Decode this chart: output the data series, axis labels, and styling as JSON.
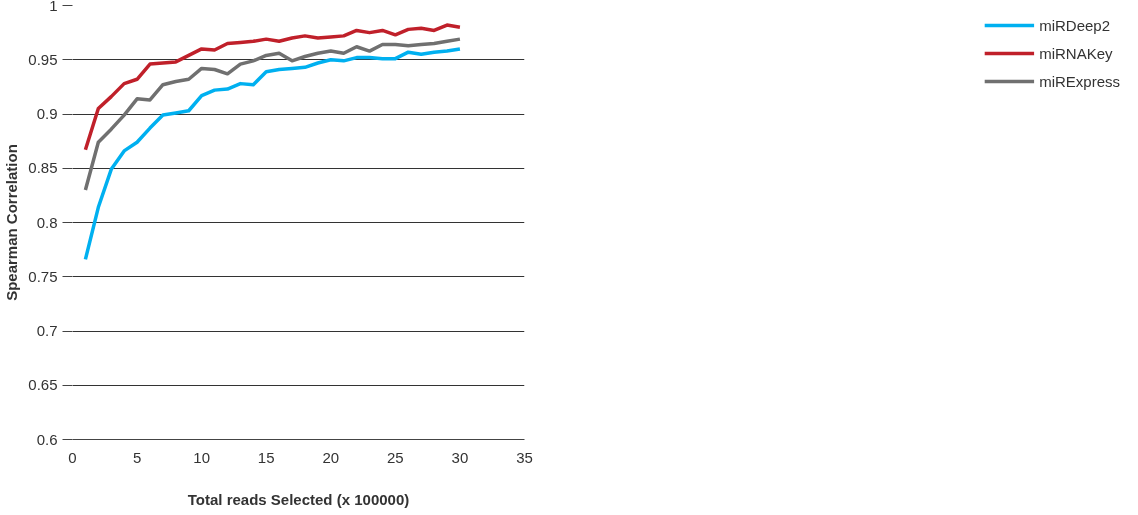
{
  "chart_data": {
    "type": "line",
    "xlabel": "Total reads Selected (x 100000)",
    "ylabel": "Spearman Correlation",
    "x": [
      1,
      2,
      3,
      4,
      5,
      6,
      7,
      8,
      9,
      10,
      11,
      12,
      13,
      14,
      15,
      16,
      17,
      18,
      19,
      20,
      21,
      22,
      23,
      24,
      25,
      26,
      27,
      28,
      29,
      30
    ],
    "series": [
      {
        "name": "miRDeep2",
        "color": "#00b0f0",
        "values": [
          0.766,
          0.814,
          0.849,
          0.866,
          0.874,
          0.887,
          0.899,
          0.901,
          0.903,
          0.917,
          0.922,
          0.923,
          0.928,
          0.927,
          0.939,
          0.941,
          0.942,
          0.943,
          0.947,
          0.95,
          0.949,
          0.952,
          0.952,
          0.951,
          0.951,
          0.957,
          0.955,
          0.957,
          0.958,
          0.96
        ]
      },
      {
        "name": "miRNAKey",
        "color": "#c0202a",
        "values": [
          0.867,
          0.905,
          0.916,
          0.928,
          0.932,
          0.946,
          0.947,
          0.948,
          0.954,
          0.96,
          0.959,
          0.965,
          0.966,
          0.967,
          0.969,
          0.967,
          0.97,
          0.972,
          0.97,
          0.971,
          0.972,
          0.977,
          0.975,
          0.977,
          0.973,
          0.978,
          0.979,
          0.977,
          0.982,
          0.98
        ]
      },
      {
        "name": "miRExpress",
        "color": "#707070",
        "values": [
          0.83,
          0.874,
          0.886,
          0.899,
          0.914,
          0.913,
          0.927,
          0.93,
          0.932,
          0.942,
          0.941,
          0.937,
          0.946,
          0.949,
          0.954,
          0.956,
          0.949,
          0.953,
          0.956,
          0.958,
          0.956,
          0.962,
          0.958,
          0.964,
          0.964,
          0.963,
          0.964,
          0.965,
          0.967,
          0.969
        ]
      }
    ],
    "xlim": [
      0,
      35
    ],
    "xticks": [
      0,
      5,
      10,
      15,
      20,
      25,
      30,
      35
    ],
    "ylim": [
      0.6,
      1
    ],
    "yticks": [
      {
        "value": 0.6,
        "label": "0.6"
      },
      {
        "value": 0.65,
        "label": "0.65"
      },
      {
        "value": 0.7,
        "label": "0.7"
      },
      {
        "value": 0.75,
        "label": "0.75"
      },
      {
        "value": 0.8,
        "label": "0.8"
      },
      {
        "value": 0.85,
        "label": "0.85"
      },
      {
        "value": 0.9,
        "label": "0.9"
      },
      {
        "value": 0.95,
        "label": "0.95"
      },
      {
        "value": 1,
        "label": "1"
      }
    ],
    "grid": "y",
    "legend": "right",
    "marker": "none",
    "line_style": "solid"
  }
}
